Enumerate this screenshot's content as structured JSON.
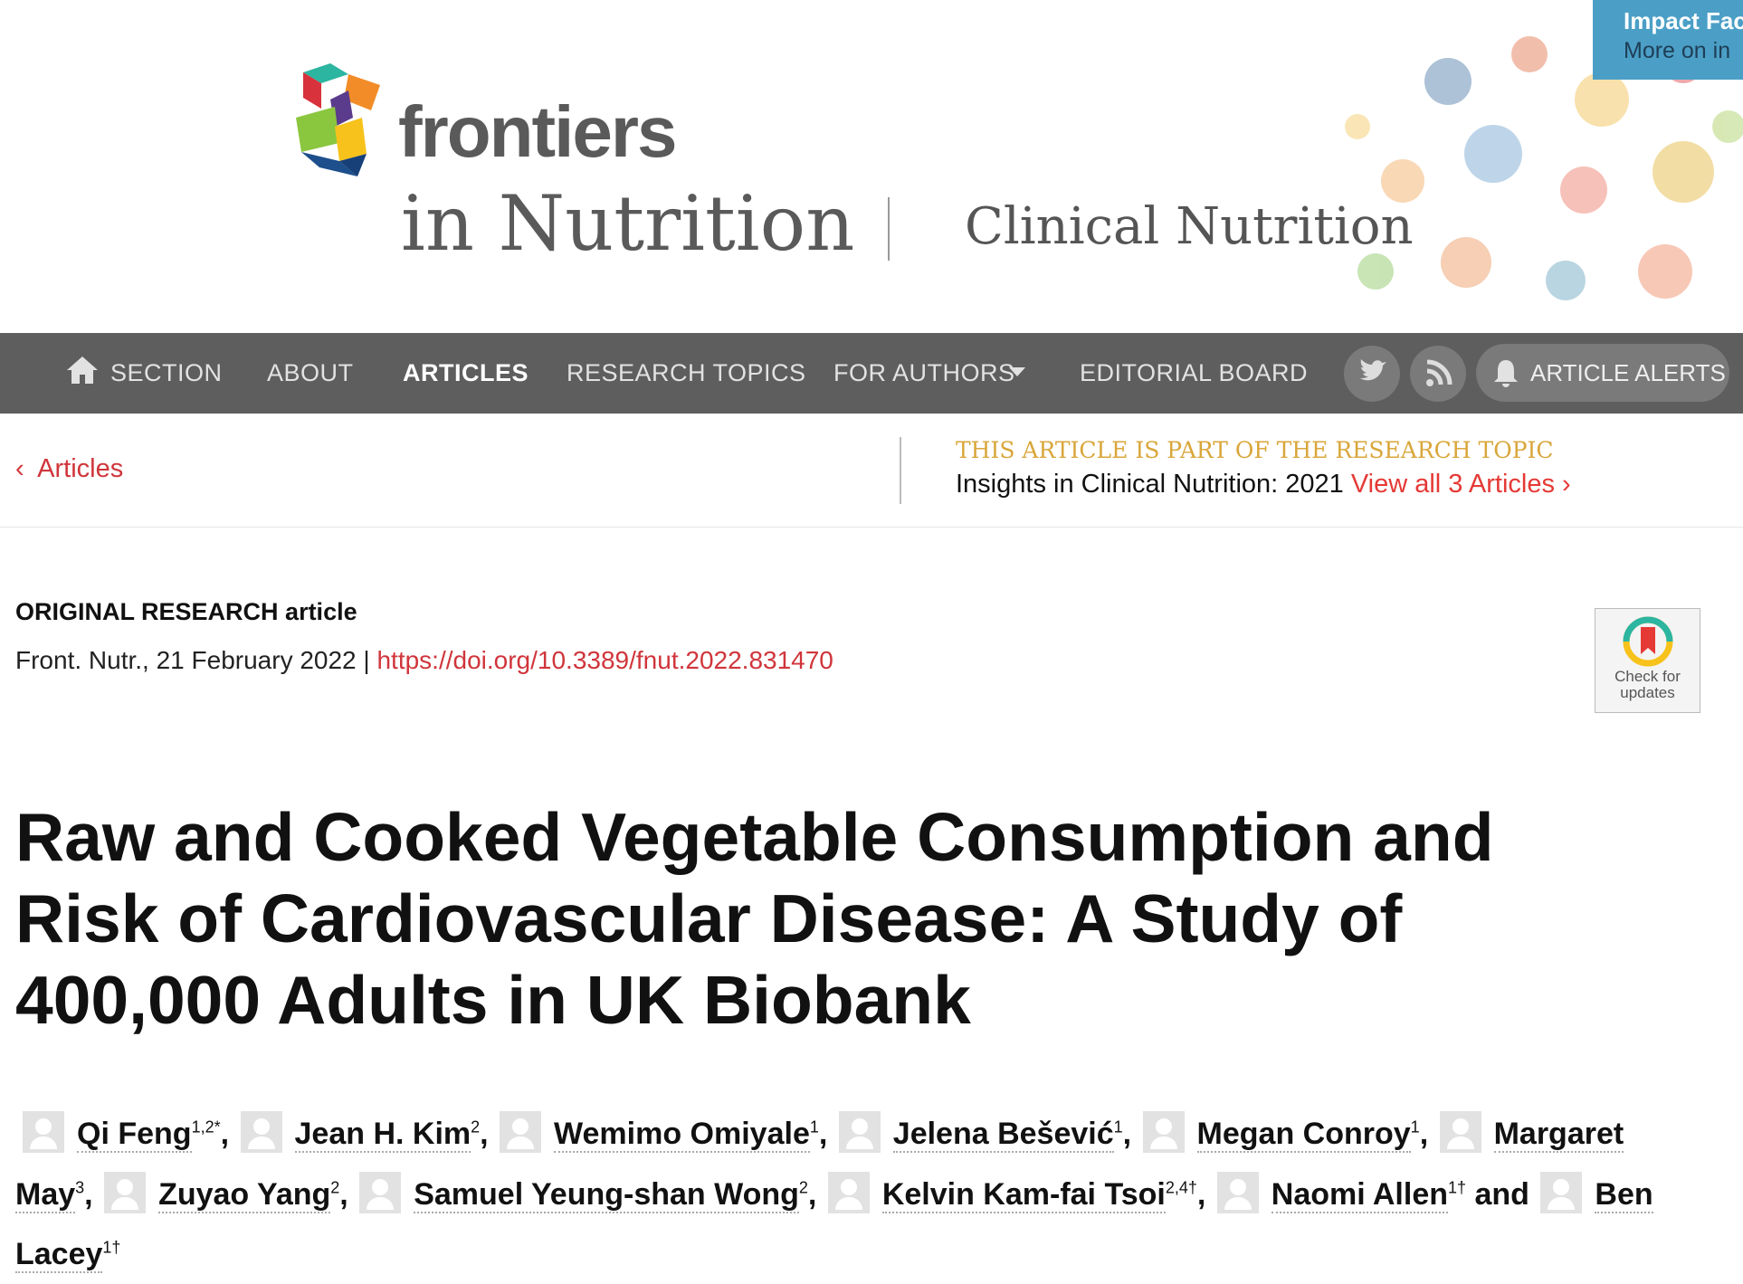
{
  "header": {
    "brand": "frontiers",
    "journal": "in Nutrition",
    "section": "Clinical Nutrition",
    "impact_factor": "Impact Fac",
    "impact_more": "More on in"
  },
  "nav": {
    "items": [
      "SECTION",
      "ABOUT",
      "ARTICLES",
      "RESEARCH TOPICS",
      "FOR AUTHORS",
      "EDITORIAL BOARD"
    ],
    "active": 2,
    "alerts": "ARTICLE ALERTS"
  },
  "breadcrumb": {
    "back": "Articles"
  },
  "research_topic": {
    "label": "THIS ARTICLE IS PART OF THE RESEARCH TOPIC",
    "name": "Insights in Clinical Nutrition: 2021",
    "link": "View all 3 Articles"
  },
  "article": {
    "type_bold": "ORIGINAL RESEARCH",
    "type_rest": "article",
    "citation": "Front. Nutr., 21 February 2022 |",
    "doi": "https://doi.org/10.3389/fnut.2022.831470",
    "check_updates": [
      "Check for",
      "updates"
    ],
    "title_lines": [
      "Raw and Cooked Vegetable Consumption and",
      "Risk of Cardiovascular Disease: A Study of",
      "400,000 Adults in UK Biobank"
    ],
    "authors": [
      {
        "name": "Qi Feng",
        "affil": "1,2*",
        "sep": ","
      },
      {
        "name": "Jean H. Kim",
        "affil": "2",
        "sep": ","
      },
      {
        "name": "Wemimo Omiyale",
        "affil": "1",
        "sep": ","
      },
      {
        "name": "Jelena Bešević",
        "affil": "1",
        "sep": ","
      },
      {
        "name": "Megan Conroy",
        "affil": "1",
        "sep": ","
      },
      {
        "name": "Margaret May",
        "affil": "3",
        "sep": ","
      },
      {
        "name": "Zuyao Yang",
        "affil": "2",
        "sep": ","
      },
      {
        "name": "Samuel Yeung-shan Wong",
        "affil": "2",
        "sep": ","
      },
      {
        "name": "Kelvin Kam-fai Tsoi",
        "affil": "2,4†",
        "sep": ","
      },
      {
        "name": "Naomi Allen",
        "affil": "1†",
        "sep": "and"
      },
      {
        "name": "Ben Lacey",
        "affil": "1†",
        "sep": null
      }
    ]
  }
}
